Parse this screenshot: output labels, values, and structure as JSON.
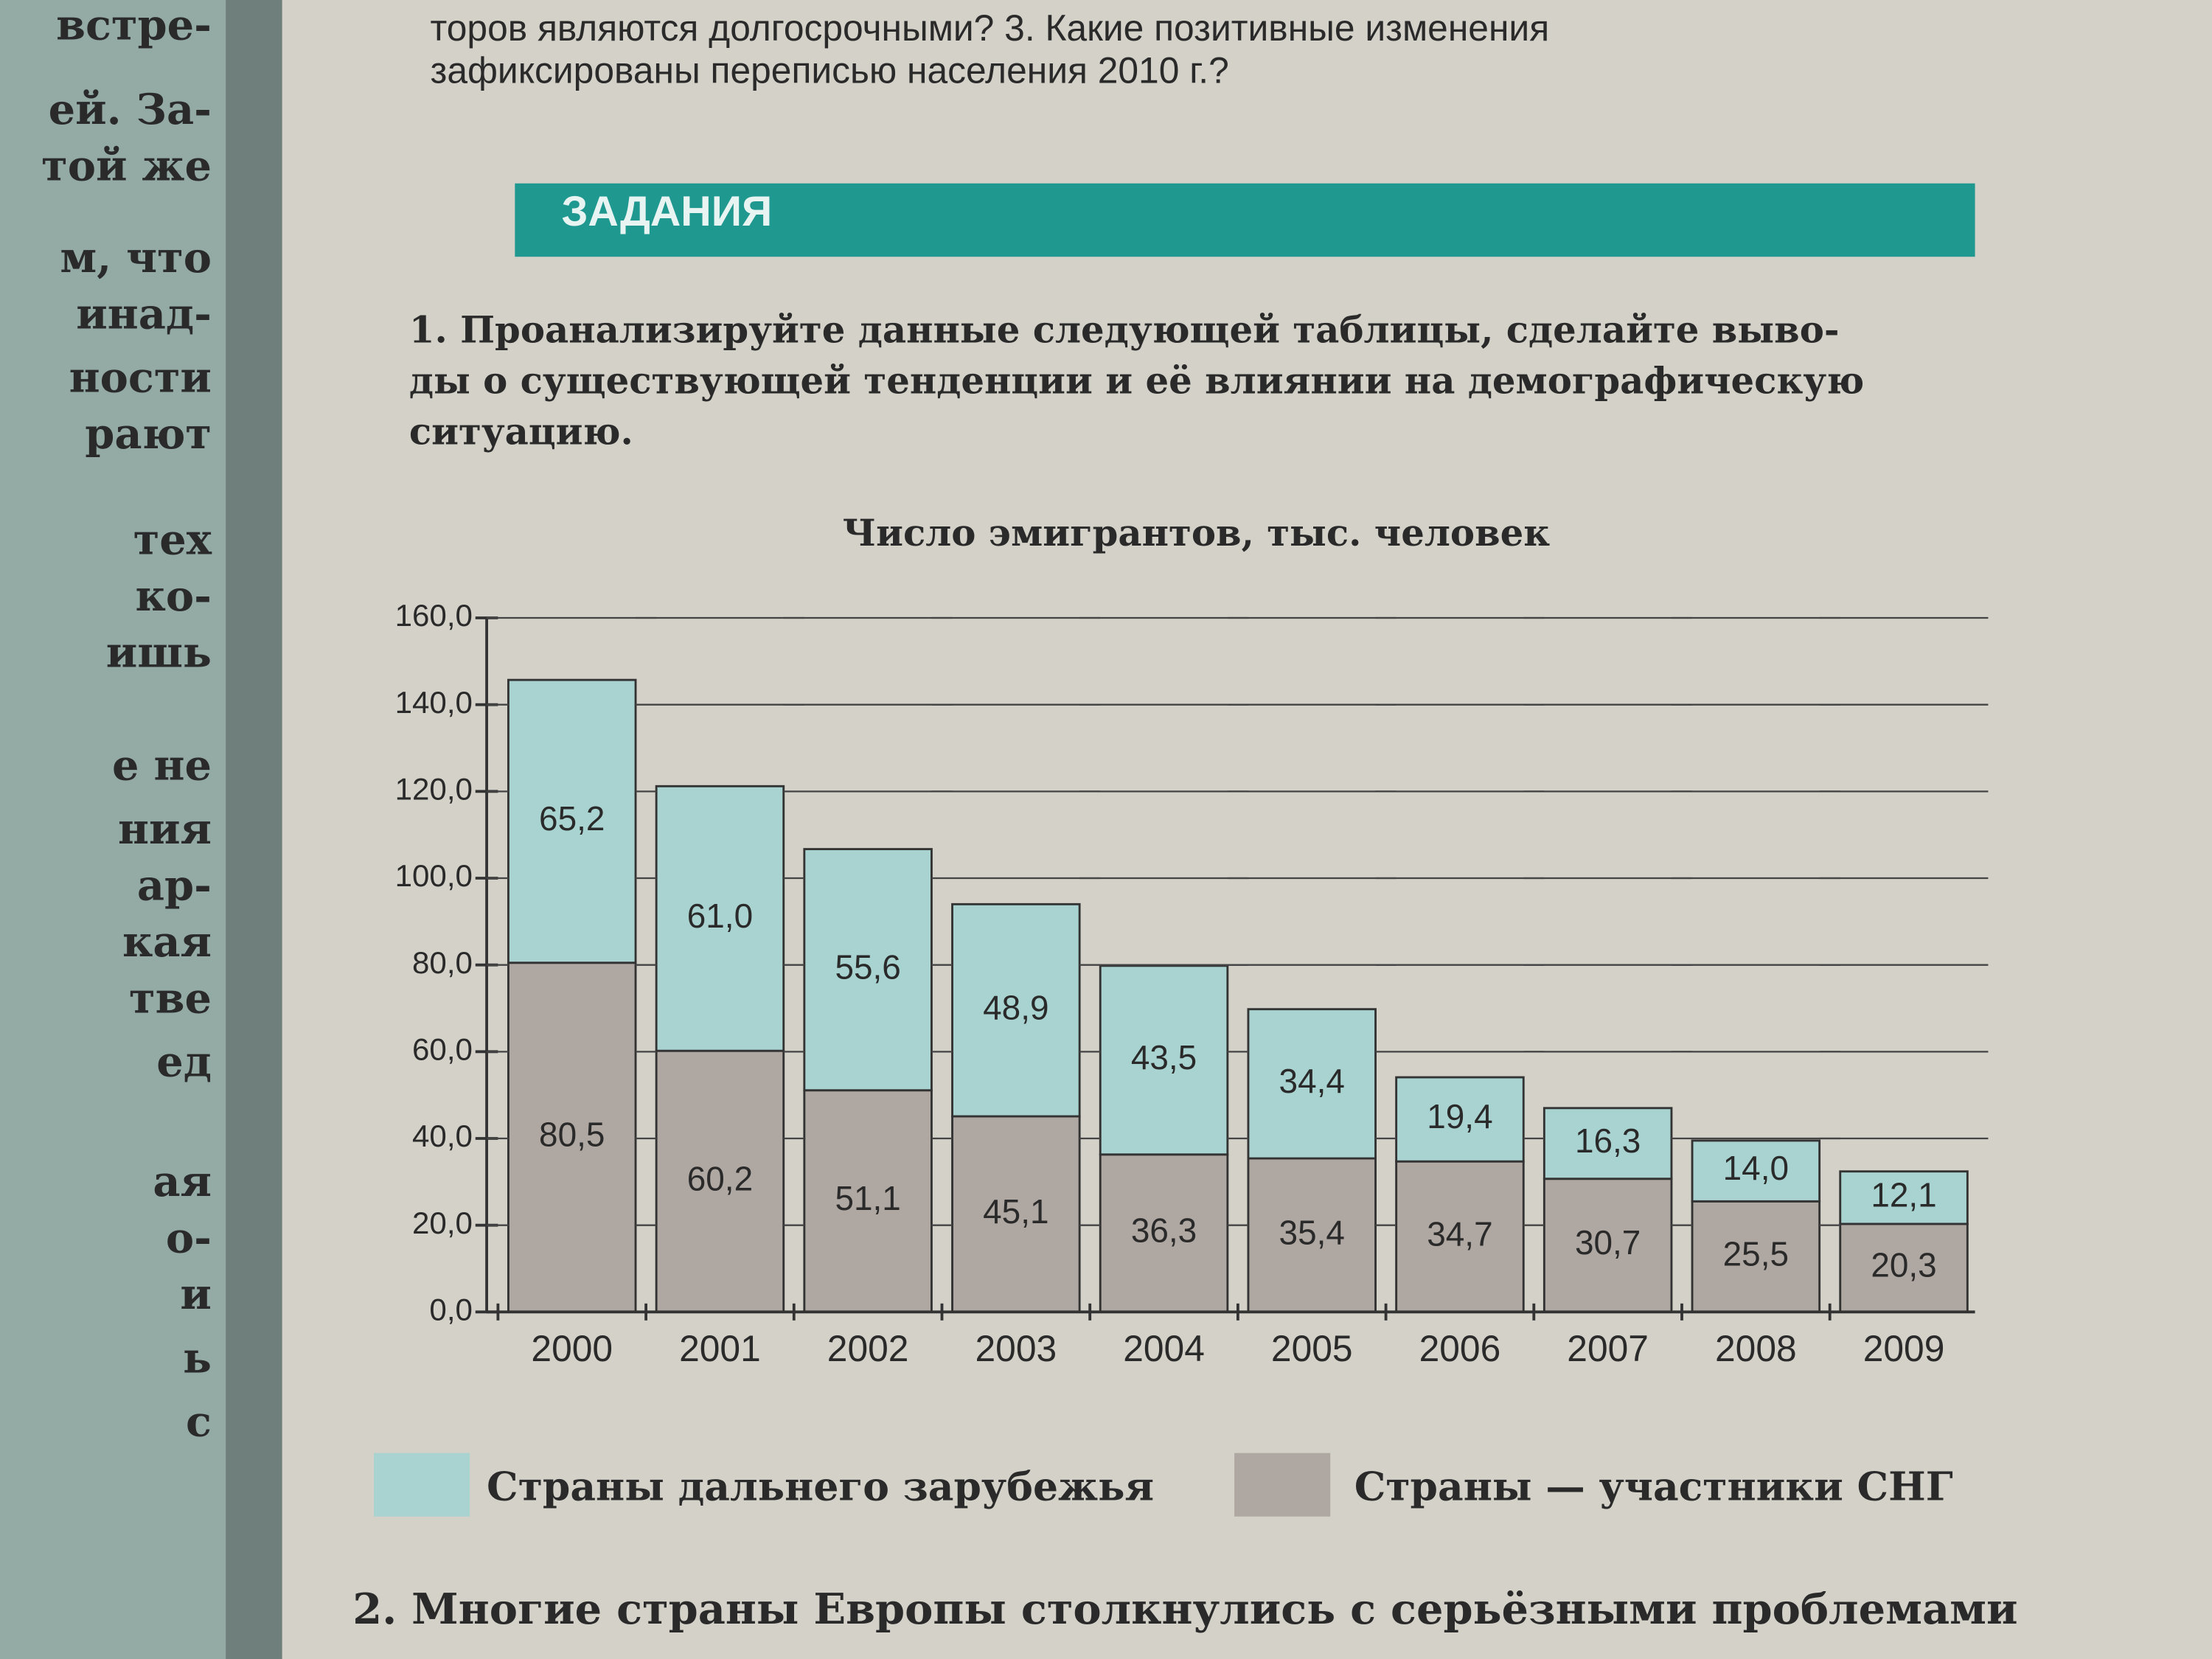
{
  "left_page": [
    "встре-",
    "ей. За-",
    "той же",
    "м, что",
    "инад-",
    "ности",
    "рают",
    "тех",
    "ко-",
    "ишь",
    "е не",
    "ния",
    "ар-",
    "кая",
    "тве",
    "ед",
    "ая",
    "о-",
    "и",
    "ь",
    "с"
  ],
  "header_text": [
    "торов являются долгосрочными? 3. Какие позитивные изменения",
    "зафиксированы переписью населения 2010 г.?"
  ],
  "section_title": "ЗАДАНИЯ",
  "task1": [
    "1. Проанализируйте данные следующей таблицы, сделайте выво-",
    "ды о существующей тенденции  и её влиянии на демографическую",
    "ситуацию."
  ],
  "chart_data": {
    "type": "stacked_bar",
    "title": "Число эмигрантов, тыс. человек",
    "categories": [
      "2000",
      "2001",
      "2002",
      "2003",
      "2004",
      "2005",
      "2006",
      "2007",
      "2008",
      "2009"
    ],
    "series": [
      {
        "name": "Страны дальнего зарубежья",
        "color": "#a8d3d1",
        "values": [
          65.2,
          61.0,
          55.6,
          48.9,
          43.5,
          34.4,
          19.4,
          16.3,
          14.0,
          12.1
        ],
        "value_labels": [
          "65,2",
          "61,0",
          "55,6",
          "48,9",
          "43,5",
          "34,4",
          "19,4",
          "16,3",
          "14,0",
          "12,1"
        ]
      },
      {
        "name": "Страны — участники СНГ",
        "color": "#afa7a1",
        "values": [
          80.5,
          60.2,
          51.1,
          45.1,
          36.3,
          35.4,
          34.7,
          30.7,
          25.5,
          20.3
        ],
        "value_labels": [
          "80,5",
          "60,2",
          "51,1",
          "45,1",
          "36,3",
          "35,4",
          "34,7",
          "30,7",
          "25,5",
          "20,3"
        ]
      }
    ],
    "ylim": [
      0,
      160
    ],
    "yticks": [
      {
        "value": 0,
        "label": "0,0"
      },
      {
        "value": 20,
        "label": "20,0"
      },
      {
        "value": 40,
        "label": "40,0"
      },
      {
        "value": 60,
        "label": "60,0"
      },
      {
        "value": 80,
        "label": "80,0"
      },
      {
        "value": 100,
        "label": "100,0"
      },
      {
        "value": 120,
        "label": "120,0"
      },
      {
        "value": 140,
        "label": "140,0"
      },
      {
        "value": 160,
        "label": "160,0"
      }
    ],
    "grid": true
  },
  "task2": "2. Многие страны Европы столкнулись с серьёзными проблемами"
}
